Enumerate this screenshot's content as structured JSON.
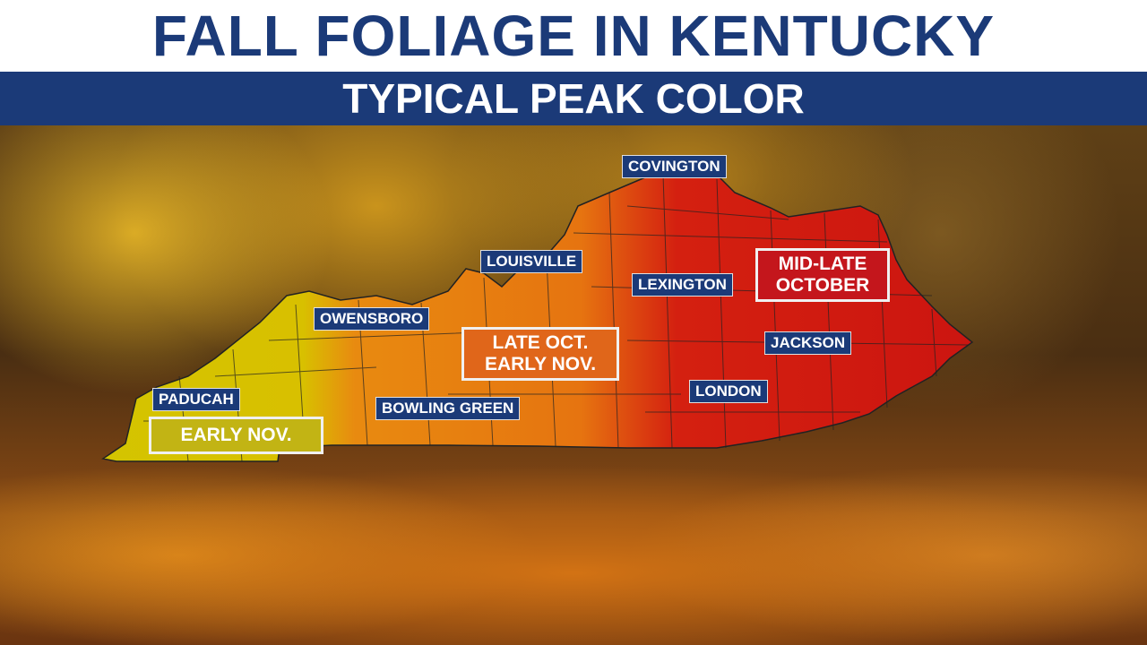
{
  "header": {
    "title": "FALL FOLIAGE IN KENTUCKY",
    "subtitle": "TYPICAL PEAK COLOR"
  },
  "cities": [
    "COVINGTON",
    "LOUISVILLE",
    "LEXINGTON",
    "OWENSBORO",
    "JACKSON",
    "PADUCAH",
    "BOWLING GREEN",
    "LONDON"
  ],
  "regions": [
    {
      "line1": "MID-LATE",
      "line2": "OCTOBER",
      "color": "#c4161c"
    },
    {
      "line1": "LATE OCT.",
      "line2": "EARLY NOV.",
      "color": "#e0661a"
    },
    {
      "line1": "EARLY NOV.",
      "line2": "",
      "color": "#c2b414"
    }
  ],
  "colors": {
    "navy": "#1b3a78",
    "yellow": "#d4c400",
    "orange": "#e57a10",
    "red": "#cc1a10"
  }
}
